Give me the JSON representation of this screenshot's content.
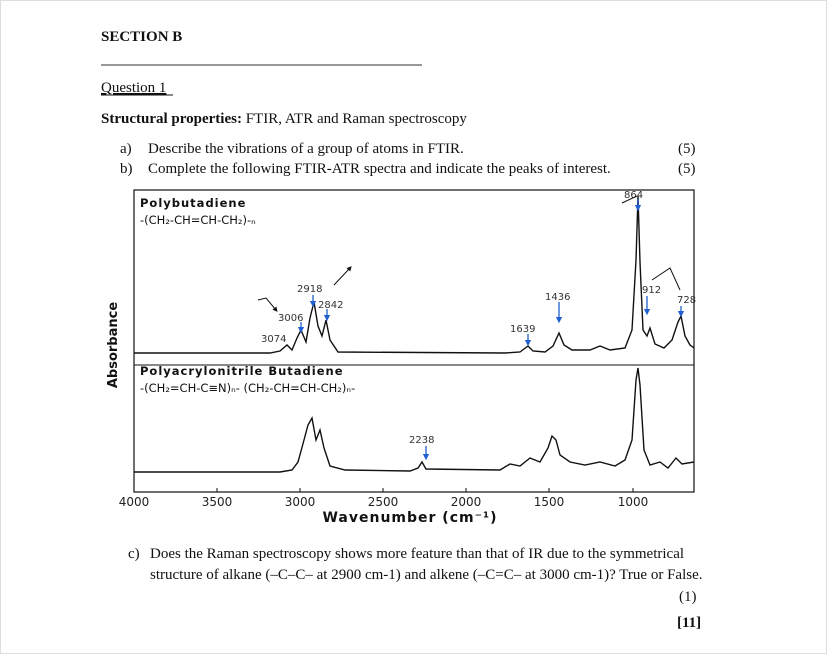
{
  "header": {
    "section": "SECTION B",
    "question": "Question 1"
  },
  "topic": {
    "label": "Structural properties:",
    "text": "FTIR, ATR and Raman spectroscopy"
  },
  "items": [
    {
      "letter": "a)",
      "lines": [
        "Describe the vibrations of a group of atoms in FTIR."
      ],
      "marks": "(5)"
    },
    {
      "letter": "b)",
      "lines": [
        "Complete the following FTIR-ATR spectra and indicate the peaks of interest."
      ],
      "marks": "(5)"
    },
    {
      "letter": "c)",
      "lines": [
        "Does the Raman spectroscopy shows more feature than that of IR due to the symmetrical",
        "structure of alkane (–C–C– at 2900 cm-1) and alkene (–C=C– at 3000 cm-1)? True or False."
      ],
      "marks": "(1)"
    }
  ],
  "total": "[11]",
  "figure": {
    "y_label": "Absorbance",
    "x_label": "Wavenumber (cm⁻¹)",
    "x_ticks": [
      "4000",
      "3500",
      "3000",
      "2500",
      "2000",
      "1500",
      "1000"
    ],
    "panels": [
      {
        "title": "Polybutadiene",
        "formula": "-(CH₂-CH=CH-CH₂)-ₙ",
        "peaks": [
          "864",
          "2918",
          "2842",
          "3006",
          "3074",
          "1436",
          "1639",
          "912",
          "728"
        ]
      },
      {
        "title": "Polyacrylonitrile Butadiene",
        "formula": "-(CH₂=CH-C≡N)ₙ- (CH₂-CH=CH-CH₂)ₙ-",
        "peaks": [
          "2238"
        ]
      }
    ]
  }
}
